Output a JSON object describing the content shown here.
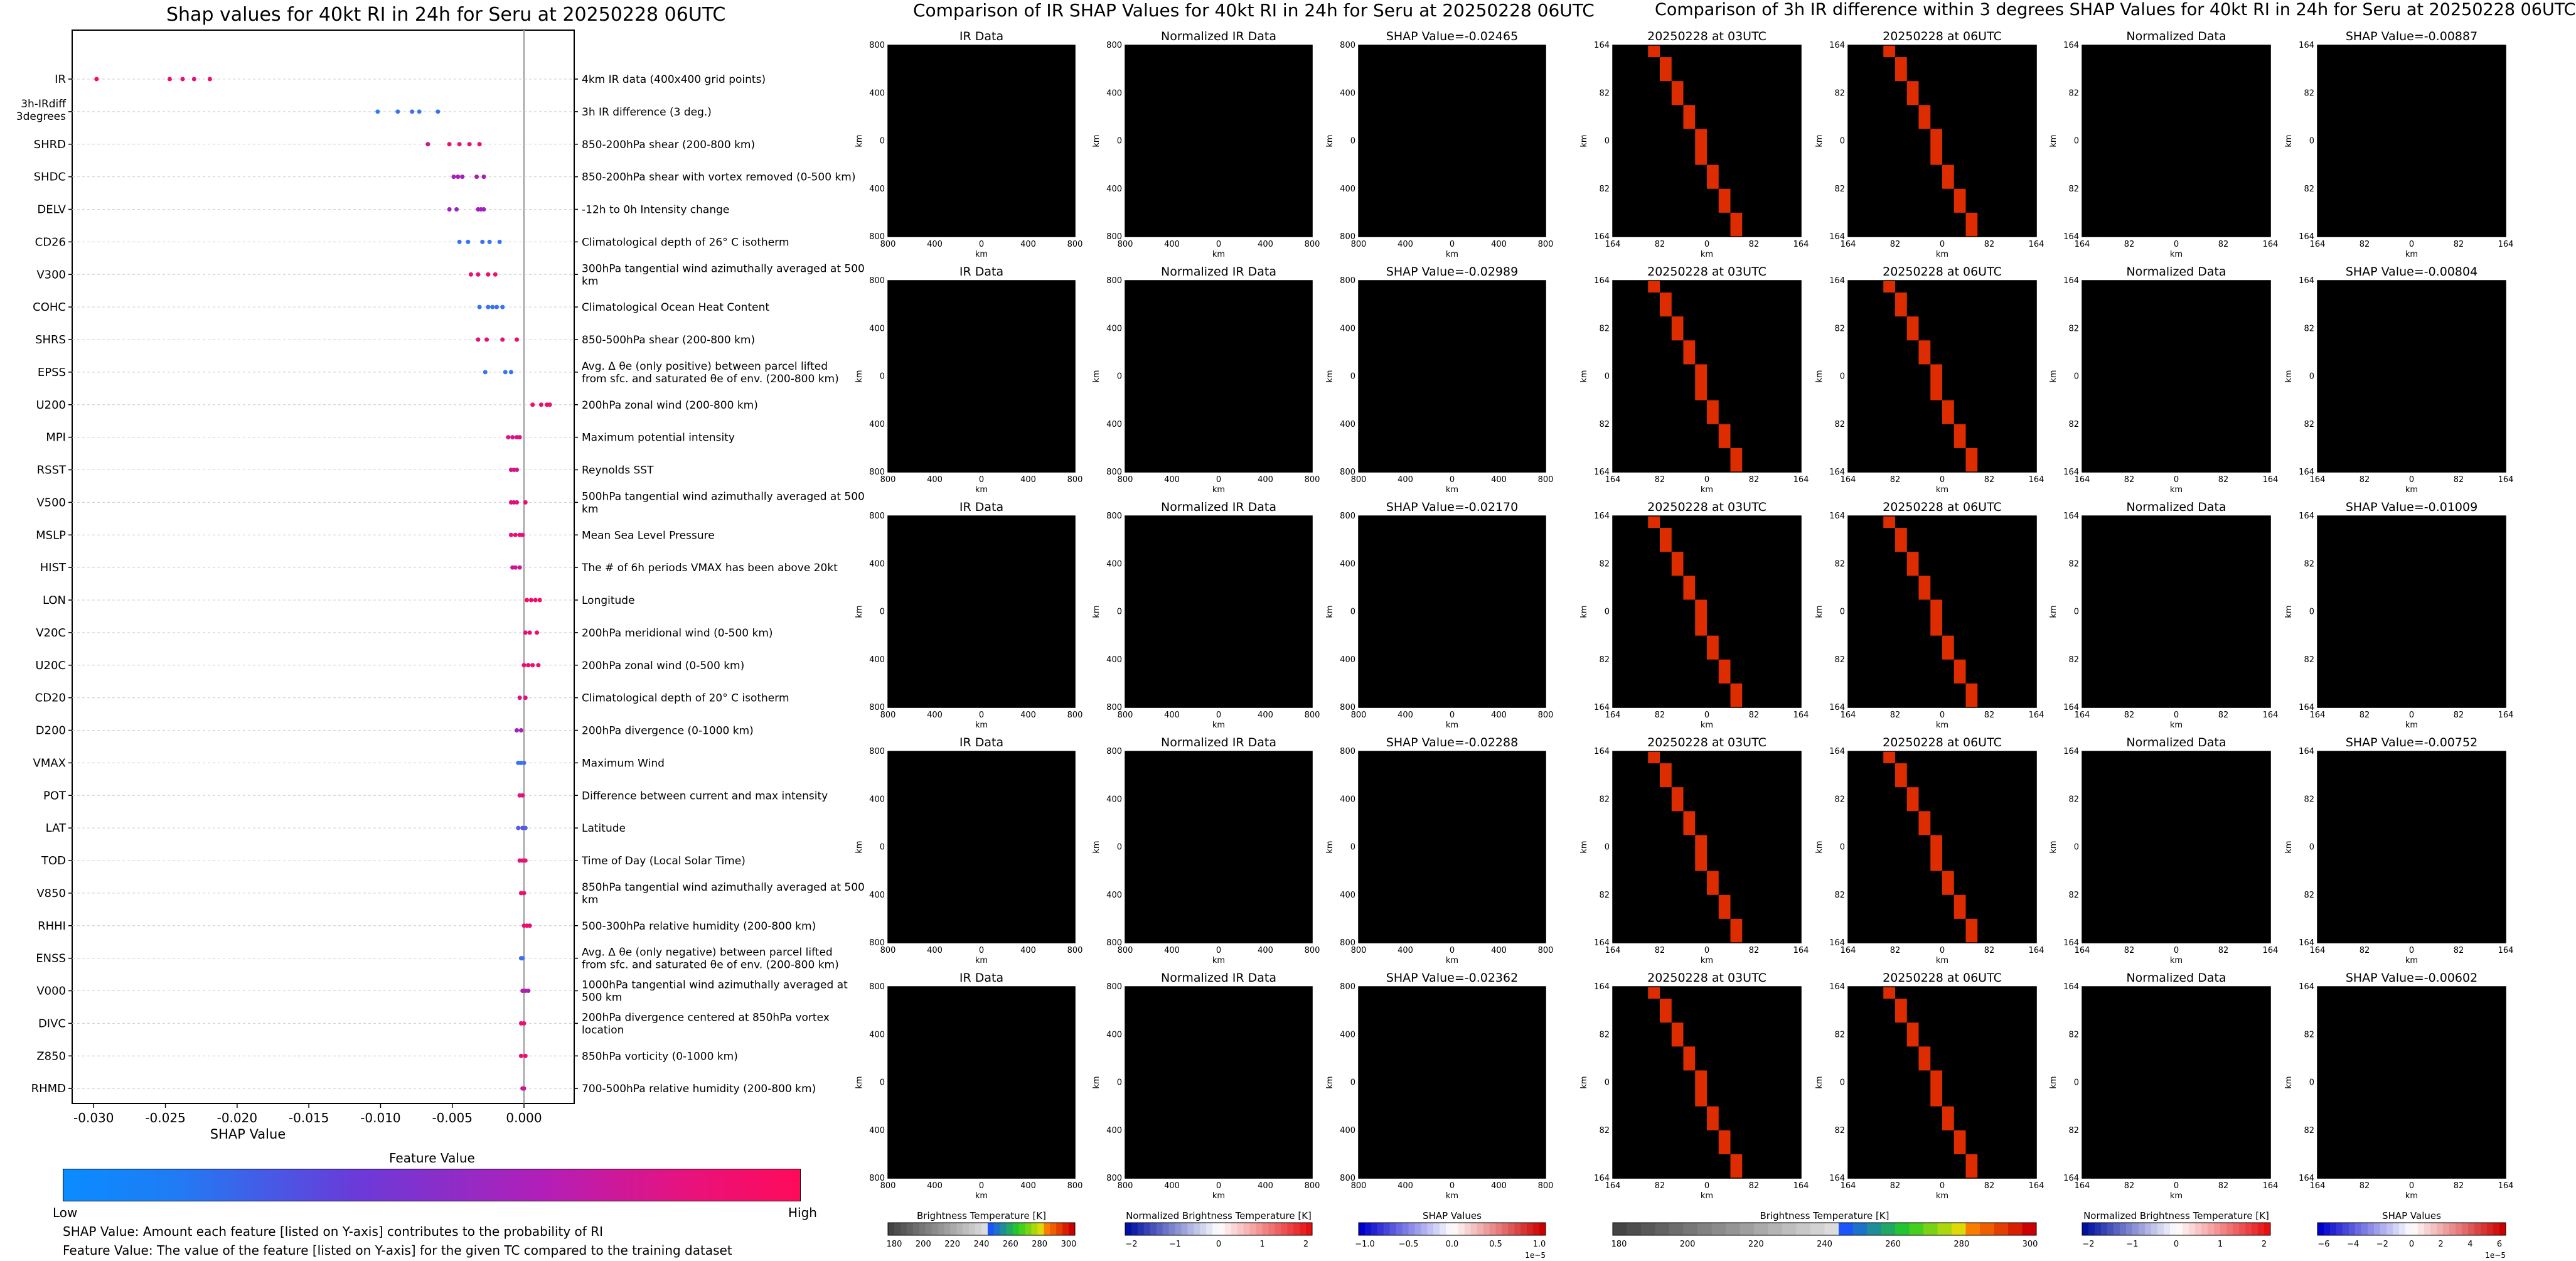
{
  "header": {
    "left_title": "Shap values for 40kt RI in 24h for Seru at 20250228 06UTC",
    "middle_title": "Comparison of IR SHAP Values for 40kt RI in 24h for Seru at 20250228 06UTC",
    "right_title": "Comparison of 3h IR difference within 3 degrees SHAP Values for 40kt RI in 24h for Seru at 20250228 06UTC"
  },
  "colors": {
    "low": "#1e88ff",
    "mid": "#a020c0",
    "high": "#ff0a5a"
  },
  "chart_data": [
    {
      "type": "scatter",
      "title": "Shap values for 40kt RI in 24h for Seru at 20250228 06UTC",
      "xlabel": "SHAP Value",
      "ylabel": "",
      "xlim": [
        -0.0315,
        0.0035
      ],
      "xticks": [
        "-0.030",
        "-0.025",
        "-0.020",
        "-0.015",
        "-0.010",
        "-0.005",
        "0.000"
      ],
      "xtick_values": [
        -0.03,
        -0.025,
        -0.02,
        -0.015,
        -0.01,
        -0.005,
        0
      ],
      "colorbar": {
        "title": "Feature Value",
        "low": "Low",
        "high": "High"
      },
      "features": [
        {
          "name": "IR",
          "desc": "4km IR data (400x400 grid points)",
          "points": [
            [
              -0.0298,
              0.95
            ],
            [
              -0.0247,
              0.9
            ],
            [
              -0.0238,
              0.85
            ],
            [
              -0.023,
              0.88
            ],
            [
              -0.0219,
              0.92
            ]
          ]
        },
        {
          "name": "3h-IRdiff 3degrees",
          "desc": "3h IR difference (3 deg.)",
          "points": [
            [
              -0.0102,
              0.05
            ],
            [
              -0.0088,
              0.1
            ],
            [
              -0.0078,
              0.12
            ],
            [
              -0.0073,
              0.08
            ],
            [
              -0.006,
              0.1
            ]
          ]
        },
        {
          "name": "SHRD",
          "desc": "850-200hPa shear (200-800 km)",
          "points": [
            [
              -0.0067,
              0.7
            ],
            [
              -0.0052,
              0.9
            ],
            [
              -0.0045,
              0.85
            ],
            [
              -0.0038,
              0.8
            ],
            [
              -0.0031,
              0.9
            ]
          ]
        },
        {
          "name": "SHDC",
          "desc": "850-200hPa shear with vortex removed (0-500 km)",
          "points": [
            [
              -0.0049,
              0.5
            ],
            [
              -0.0046,
              0.55
            ],
            [
              -0.0043,
              0.5
            ],
            [
              -0.0033,
              0.6
            ],
            [
              -0.0028,
              0.55
            ]
          ]
        },
        {
          "name": "DELV",
          "desc": "-12h to 0h Intensity change",
          "points": [
            [
              -0.0052,
              0.5
            ],
            [
              -0.0047,
              0.45
            ],
            [
              -0.0032,
              0.5
            ],
            [
              -0.003,
              0.55
            ],
            [
              -0.0028,
              0.5
            ]
          ]
        },
        {
          "name": "CD26",
          "desc": "Climatological depth of 26° C isotherm",
          "points": [
            [
              -0.0045,
              0.1
            ],
            [
              -0.0039,
              0.08
            ],
            [
              -0.0029,
              0.12
            ],
            [
              -0.0024,
              0.1
            ],
            [
              -0.0017,
              0.1
            ]
          ]
        },
        {
          "name": "V300",
          "desc": "300hPa tangential wind azimuthally averaged at 500 km",
          "points": [
            [
              -0.0037,
              0.9
            ],
            [
              -0.0032,
              0.85
            ],
            [
              -0.0025,
              0.9
            ],
            [
              -0.002,
              0.95
            ]
          ]
        },
        {
          "name": "COHC",
          "desc": "Climatological Ocean Heat Content",
          "points": [
            [
              -0.0031,
              0.1
            ],
            [
              -0.0025,
              0.12
            ],
            [
              -0.0022,
              0.1
            ],
            [
              -0.0019,
              0.1
            ],
            [
              -0.0015,
              0.08
            ]
          ]
        },
        {
          "name": "SHRS",
          "desc": "850-500hPa shear (200-800 km)",
          "points": [
            [
              -0.0032,
              0.85
            ],
            [
              -0.0026,
              0.9
            ],
            [
              -0.0015,
              0.85
            ],
            [
              -0.0005,
              0.9
            ]
          ]
        },
        {
          "name": "EPSS",
          "desc": "Avg. Δ θe (only positive) between parcel lifted from sfc. and saturated θe of env. (200-800 km)",
          "points": [
            [
              -0.0027,
              0.1
            ],
            [
              -0.0013,
              0.08
            ],
            [
              -0.0009,
              0.12
            ]
          ]
        },
        {
          "name": "U200",
          "desc": "200hPa zonal wind (200-800 km)",
          "points": [
            [
              0.0006,
              0.95
            ],
            [
              0.0012,
              0.9
            ],
            [
              0.0016,
              0.92
            ],
            [
              0.0018,
              0.95
            ]
          ]
        },
        {
          "name": "MPI",
          "desc": "Maximum potential intensity",
          "points": [
            [
              -0.0011,
              0.8
            ],
            [
              -0.0008,
              0.75
            ],
            [
              -0.0005,
              0.8
            ],
            [
              -0.0003,
              0.8
            ]
          ]
        },
        {
          "name": "RSST",
          "desc": "Reynolds SST",
          "points": [
            [
              -0.0009,
              0.75
            ],
            [
              -0.0007,
              0.8
            ],
            [
              -0.0005,
              0.78
            ]
          ]
        },
        {
          "name": "V500",
          "desc": "500hPa tangential wind azimuthally averaged at 500 km",
          "points": [
            [
              -0.0009,
              0.85
            ],
            [
              -0.0007,
              0.8
            ],
            [
              -0.0005,
              0.85
            ],
            [
              0.0001,
              0.9
            ]
          ]
        },
        {
          "name": "MSLP",
          "desc": "Mean Sea Level Pressure",
          "points": [
            [
              -0.0009,
              0.85
            ],
            [
              -0.0006,
              0.9
            ],
            [
              -0.0003,
              0.88
            ],
            [
              -0.0001,
              0.85
            ]
          ]
        },
        {
          "name": "HIST",
          "desc": "The # of 6h periods VMAX has been above 20kt",
          "points": [
            [
              -0.0008,
              0.7
            ],
            [
              -0.0006,
              0.75
            ],
            [
              -0.0003,
              0.72
            ]
          ]
        },
        {
          "name": "LON",
          "desc": "Longitude",
          "points": [
            [
              0.0002,
              0.95
            ],
            [
              0.0005,
              0.9
            ],
            [
              0.0008,
              0.92
            ],
            [
              0.0011,
              0.95
            ]
          ]
        },
        {
          "name": "V20C",
          "desc": "200hPa meridional wind (0-500 km)",
          "points": [
            [
              0.0001,
              0.9
            ],
            [
              0.0004,
              0.85
            ],
            [
              0.0009,
              0.9
            ]
          ]
        },
        {
          "name": "U20C",
          "desc": "200hPa zonal wind (0-500 km)",
          "points": [
            [
              0.0,
              0.9
            ],
            [
              0.0003,
              0.88
            ],
            [
              0.0006,
              0.92
            ],
            [
              0.001,
              0.9
            ]
          ]
        },
        {
          "name": "CD20",
          "desc": "Climatological depth of 20° C isotherm",
          "points": [
            [
              -0.0003,
              0.8
            ],
            [
              0.0001,
              0.85
            ]
          ]
        },
        {
          "name": "D200",
          "desc": "200hPa divergence (0-1000 km)",
          "points": [
            [
              -0.0005,
              0.5
            ],
            [
              -0.0002,
              0.55
            ]
          ]
        },
        {
          "name": "VMAX",
          "desc": "Maximum Wind",
          "points": [
            [
              -0.0004,
              0.1
            ],
            [
              -0.0002,
              0.1
            ],
            [
              0.0,
              0.12
            ]
          ]
        },
        {
          "name": "POT",
          "desc": "Difference between current and max intensity",
          "points": [
            [
              -0.0003,
              0.85
            ],
            [
              -0.0001,
              0.8
            ]
          ]
        },
        {
          "name": "LAT",
          "desc": "Latitude",
          "points": [
            [
              -0.0004,
              0.2
            ],
            [
              -0.0001,
              0.25
            ],
            [
              0.0001,
              0.2
            ]
          ]
        },
        {
          "name": "TOD",
          "desc": "Time of Day (Local Solar Time)",
          "points": [
            [
              -0.0003,
              0.85
            ],
            [
              -0.0001,
              0.88
            ],
            [
              0.0001,
              0.85
            ]
          ]
        },
        {
          "name": "V850",
          "desc": "850hPa tangential wind azimuthally averaged at 500 km",
          "points": [
            [
              -0.0002,
              0.9
            ],
            [
              0.0,
              0.88
            ]
          ]
        },
        {
          "name": "RHHI",
          "desc": "500-300hPa relative humidity (200-800 km)",
          "points": [
            [
              0.0,
              0.9
            ],
            [
              0.0002,
              0.92
            ],
            [
              0.0004,
              0.9
            ]
          ]
        },
        {
          "name": "ENSS",
          "desc": "Avg. Δ θe (only negative) between parcel lifted from sfc. and saturated θe of env. (200-800 km)",
          "points": [
            [
              -0.0002,
              0.15
            ],
            [
              -0.0001,
              0.12
            ]
          ]
        },
        {
          "name": "V000",
          "desc": "1000hPa tangential wind azimuthally averaged at 500 km",
          "points": [
            [
              -0.0001,
              0.55
            ],
            [
              0.0001,
              0.6
            ],
            [
              0.0003,
              0.55
            ]
          ]
        },
        {
          "name": "DIVC",
          "desc": "200hPa divergence centered at 850hPa vortex location",
          "points": [
            [
              -0.0002,
              0.85
            ],
            [
              0.0,
              0.9
            ]
          ]
        },
        {
          "name": "Z850",
          "desc": "850hPa vorticity (0-1000 km)",
          "points": [
            [
              -0.0002,
              0.88
            ],
            [
              0.0001,
              0.9
            ]
          ]
        },
        {
          "name": "RHMD",
          "desc": "700-500hPa relative humidity (200-800 km)",
          "points": [
            [
              -0.0001,
              0.7
            ],
            [
              0.0,
              0.72
            ]
          ]
        }
      ]
    },
    {
      "type": "heatmap",
      "title": "Comparison of IR SHAP Values for 40kt RI in 24h for Seru at 20250228 06UTC",
      "columns": [
        "IR Data",
        "Normalized IR Data",
        "SHAP Value"
      ],
      "shap_values": [
        "-0.02465",
        "-0.02989",
        "-0.02170",
        "-0.02288",
        "-0.02362"
      ],
      "axis_label": "km",
      "ticks": [
        "800",
        "400",
        "0",
        "400",
        "800"
      ],
      "colorbars": [
        {
          "label": "Brightness Temperature [K]",
          "ticks": [
            "180",
            "200",
            "220",
            "240",
            "260",
            "280",
            "300"
          ]
        },
        {
          "label": "Normalized Brightness Temperature [K]",
          "ticks": [
            "−2",
            "−1",
            "0",
            "1",
            "2"
          ]
        },
        {
          "label": "SHAP Values",
          "ticks": [
            "−1.0",
            "−0.5",
            "0.0",
            "0.5",
            "1.0"
          ],
          "scale": "1e−5"
        }
      ]
    },
    {
      "type": "heatmap",
      "title": "Comparison of 3h IR difference within 3 degrees SHAP Values for 40kt RI in 24h for Seru at 20250228 06UTC",
      "columns": [
        "20250228 at 03UTC",
        "20250228 at 06UTC",
        "Normalized Data",
        "SHAP Value"
      ],
      "shap_values": [
        "-0.00887",
        "-0.00804",
        "-0.01009",
        "-0.00752",
        "-0.00602"
      ],
      "axis_label": "km",
      "ticks": [
        "164",
        "82",
        "0",
        "82",
        "164"
      ],
      "colorbars": [
        {
          "label": "Brightness Temperature [K]",
          "ticks": [
            "180",
            "200",
            "220",
            "240",
            "260",
            "280",
            "300"
          ]
        },
        {
          "label": "Normalized Brightness Temperature [K]",
          "ticks": [
            "−2",
            "−1",
            "0",
            "1",
            "2"
          ]
        },
        {
          "label": "SHAP Values",
          "ticks": [
            "−6",
            "−4",
            "−2",
            "0",
            "2",
            "4",
            "6"
          ],
          "scale": "1e−5"
        }
      ]
    }
  ],
  "footnotes": {
    "shap": "SHAP Value: Amount each feature [listed on Y-axis] contributes to the probability of RI",
    "feature": "Feature Value: The value of the feature [listed on Y-axis] for the given TC compared to the training dataset"
  }
}
